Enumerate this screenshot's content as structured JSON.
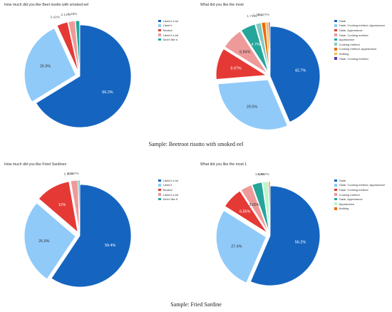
{
  "chart_data": [
    {
      "type": "pie",
      "title": "How much did you like Beet risotto with smoked eel",
      "categories": [
        "Liked it a lot",
        "Liked it",
        "Neutral",
        "Liked it a bit",
        "Didn't like it"
      ],
      "values": [
        66.2,
        26.9,
        3.42,
        2.14,
        1.28
      ],
      "labels": [
        "66.2%",
        "26.9%",
        "3.42%",
        "2.14%",
        "1.28%"
      ],
      "colors": [
        "#1565c0",
        "#90caf9",
        "#e53935",
        "#ef9a9a",
        "#26a69a"
      ],
      "exploded": true,
      "legend": "right"
    },
    {
      "type": "pie",
      "title": "What did you like the most",
      "categories": [
        "Taste",
        "Taste, Cooking method, Appearance",
        "Taste, Appearance",
        "Taste, Cooking method",
        "Appearance",
        "Cooking method",
        "Cooking method, Appearance",
        "Nothing",
        "Taste, Cooking method,"
      ],
      "values": [
        42.7,
        29.5,
        9.97,
        6.84,
        4.7,
        1.71,
        1.28,
        0.856,
        0.427
      ],
      "labels": [
        "42.7%",
        "29.5%",
        "9.97%",
        "6.84%",
        "4.7%",
        "1.71%",
        "1.28%",
        "",
        "0.427%"
      ],
      "colors": [
        "#1565c0",
        "#90caf9",
        "#e53935",
        "#ef9a9a",
        "#26a69a",
        "#80cbc4",
        "#ef6c00",
        "#ffb74d",
        "#5e35b1"
      ],
      "exploded": true,
      "legend": "right"
    },
    {
      "type": "pie",
      "title": "How much did you like Fried Sardines",
      "categories": [
        "Liked it a lot",
        "Liked it",
        "Neutral",
        "Liked it a bit",
        "Didn't like it"
      ],
      "values": [
        59.4,
        26.9,
        11,
        2.28,
        0.457
      ],
      "labels": [
        "59.4%",
        "26.9%",
        "11%",
        "2.28%",
        "0.457%"
      ],
      "colors": [
        "#1565c0",
        "#90caf9",
        "#e53935",
        "#ef9a9a",
        "#26a69a"
      ],
      "exploded": true,
      "legend": "right"
    },
    {
      "type": "pie",
      "title": "What did you like the most.1",
      "categories": [
        "Taste",
        "Taste, Cooking method, Appearance",
        "Taste, Cooking method",
        "Cooking method",
        "Taste, Appearance",
        "Appearance",
        "Nothing"
      ],
      "values": [
        56.2,
        27.4,
        6.85,
        3.65,
        3.2,
        1.83,
        0.457
      ],
      "labels": [
        "56.2%",
        "27.4%",
        "6.85%",
        "3.65%",
        "",
        "1.83%",
        "0.457%"
      ],
      "colors": [
        "#1565c0",
        "#90caf9",
        "#e53935",
        "#ef9a9a",
        "#26a69a",
        "#b9f6ca",
        "#ef6c00"
      ],
      "exploded": true,
      "legend": "right"
    }
  ],
  "captions": {
    "top": "Sample: Beetroot risotto with smoked eel",
    "bottom": "Sample: Fried Sardine"
  }
}
